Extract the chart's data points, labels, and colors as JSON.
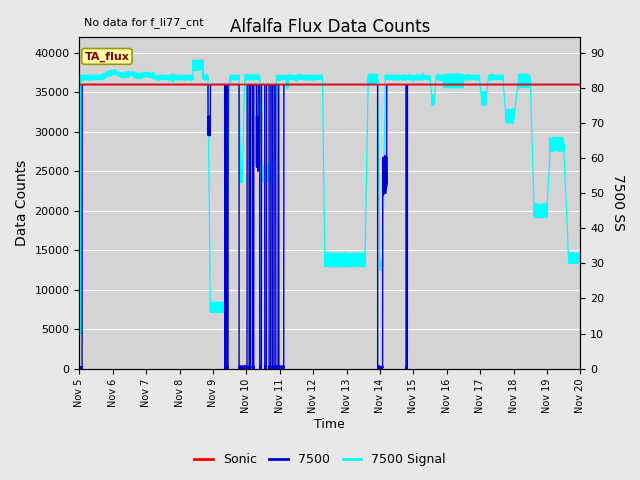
{
  "title": "Alfalfa Flux Data Counts",
  "no_data_text": "No data for f_li77_cnt",
  "xlabel": "Time",
  "ylabel_left": "Data Counts",
  "ylabel_right": "7500 SS",
  "xlim_days": [
    5,
    20
  ],
  "ylim_left": [
    0,
    42000
  ],
  "ylim_right": [
    0,
    94.5
  ],
  "yticks_left": [
    0,
    5000,
    10000,
    15000,
    20000,
    25000,
    30000,
    35000,
    40000
  ],
  "yticks_right": [
    0,
    10,
    20,
    30,
    40,
    50,
    60,
    70,
    80,
    90
  ],
  "xticks": [
    5,
    6,
    7,
    8,
    9,
    10,
    11,
    12,
    13,
    14,
    15,
    16,
    17,
    18,
    19,
    20
  ],
  "xtick_label_list": [
    "Nov 5",
    "Nov 6",
    "Nov 7",
    "Nov 8",
    "Nov 9",
    "Nov 10",
    "Nov 11",
    "Nov 12",
    "Nov 13",
    "Nov 14",
    "Nov 15",
    "Nov 16",
    "Nov 17",
    "Nov 18",
    "Nov 19",
    "Nov 20"
  ],
  "legend_entries": [
    "Sonic",
    "7500",
    "7500 Signal"
  ],
  "legend_colors": [
    "red",
    "#0000cc",
    "cyan"
  ],
  "bg_color": "#e8e8e8",
  "plot_bg_color": "#d4d4d4",
  "grid_color": "white",
  "box_label": "TA_flux",
  "sonic_level": 36000,
  "li7500_level": 36000,
  "signal_base": 83.0,
  "right_scale_top": 94.5,
  "left_scale_top": 42000
}
